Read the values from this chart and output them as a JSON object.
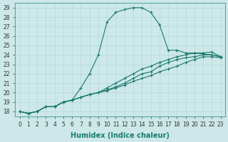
{
  "xlabel": "Humidex (Indice chaleur)",
  "ylabel": "",
  "bg_color": "#cce8e8",
  "line_color": "#1a7a6e",
  "x_ticks": [
    0,
    1,
    2,
    3,
    4,
    5,
    6,
    7,
    8,
    9,
    10,
    11,
    12,
    13,
    14,
    15,
    16,
    17,
    18,
    19,
    20,
    21,
    22,
    23
  ],
  "y_ticks": [
    18,
    19,
    20,
    21,
    22,
    23,
    24,
    25,
    26,
    27,
    28,
    29
  ],
  "ylim": [
    17.5,
    29.5
  ],
  "xlim": [
    -0.5,
    23.5
  ],
  "series": [
    [
      18.0,
      17.8,
      18.0,
      18.5,
      18.5,
      19.0,
      19.2,
      20.5,
      22.0,
      24.0,
      27.5,
      28.5,
      28.8,
      29.0,
      29.0,
      28.5,
      27.2,
      24.5,
      24.5,
      24.2,
      24.2,
      24.1,
      24.0,
      23.8
    ],
    [
      18.0,
      17.8,
      18.0,
      18.5,
      18.5,
      19.0,
      19.2,
      19.5,
      19.8,
      20.0,
      20.3,
      20.6,
      21.0,
      21.5,
      22.0,
      22.2,
      22.8,
      23.2,
      23.5,
      23.7,
      23.8,
      24.0,
      24.0,
      23.8
    ],
    [
      18.0,
      17.8,
      18.0,
      18.5,
      18.5,
      19.0,
      19.2,
      19.5,
      19.8,
      20.0,
      20.5,
      21.0,
      21.5,
      22.0,
      22.5,
      22.8,
      23.2,
      23.5,
      23.8,
      24.0,
      24.2,
      24.2,
      24.3,
      23.8
    ],
    [
      18.0,
      17.8,
      18.0,
      18.5,
      18.5,
      19.0,
      19.2,
      19.5,
      19.8,
      20.0,
      20.2,
      20.5,
      20.8,
      21.2,
      21.5,
      21.8,
      22.2,
      22.5,
      22.8,
      23.2,
      23.5,
      23.8,
      23.8,
      23.7
    ]
  ]
}
